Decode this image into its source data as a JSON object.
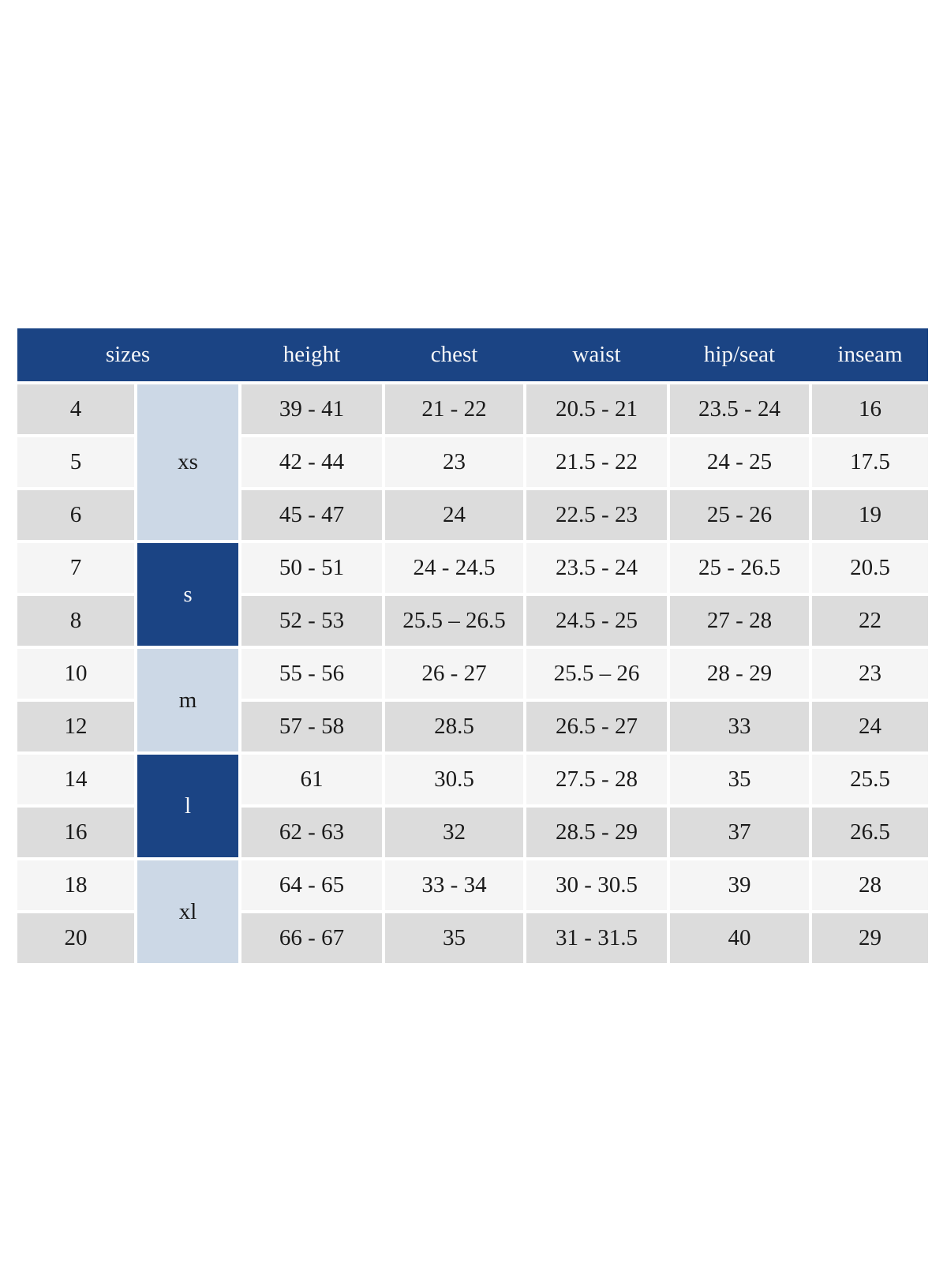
{
  "table": {
    "columns": [
      {
        "key": "sizes",
        "label": "sizes"
      },
      {
        "key": "height",
        "label": "height"
      },
      {
        "key": "chest",
        "label": "chest"
      },
      {
        "key": "waist",
        "label": "waist"
      },
      {
        "key": "hip_seat",
        "label": "hip/seat"
      },
      {
        "key": "inseam",
        "label": "inseam"
      }
    ],
    "size_groups": [
      {
        "label": "xs",
        "rows": [
          0,
          1,
          2
        ],
        "style": "light"
      },
      {
        "label": "s",
        "rows": [
          3,
          4
        ],
        "style": "dark"
      },
      {
        "label": "m",
        "rows": [
          5,
          6
        ],
        "style": "light"
      },
      {
        "label": "l",
        "rows": [
          7,
          8
        ],
        "style": "dark"
      },
      {
        "label": "xl",
        "rows": [
          9,
          10
        ],
        "style": "light"
      }
    ],
    "rows": [
      {
        "size": "4",
        "height": "39 - 41",
        "chest": "21 - 22",
        "waist": "20.5 - 21",
        "hip_seat": "23.5 - 24",
        "inseam": "16"
      },
      {
        "size": "5",
        "height": "42 - 44",
        "chest": "23",
        "waist": "21.5 - 22",
        "hip_seat": "24 - 25",
        "inseam": "17.5"
      },
      {
        "size": "6",
        "height": "45 - 47",
        "chest": "24",
        "waist": "22.5 - 23",
        "hip_seat": "25 - 26",
        "inseam": "19"
      },
      {
        "size": "7",
        "height": "50 - 51",
        "chest": "24 - 24.5",
        "waist": "23.5 - 24",
        "hip_seat": "25 - 26.5",
        "inseam": "20.5"
      },
      {
        "size": "8",
        "height": "52 - 53",
        "chest": "25.5 – 26.5",
        "waist": "24.5 - 25",
        "hip_seat": "27 - 28",
        "inseam": "22"
      },
      {
        "size": "10",
        "height": "55 - 56",
        "chest": "26 - 27",
        "waist": "25.5 – 26",
        "hip_seat": "28 - 29",
        "inseam": "23"
      },
      {
        "size": "12",
        "height": "57 - 58",
        "chest": "28.5",
        "waist": "26.5 - 27",
        "hip_seat": "33",
        "inseam": "24"
      },
      {
        "size": "14",
        "height": "61",
        "chest": "30.5",
        "waist": "27.5 - 28",
        "hip_seat": "35",
        "inseam": "25.5"
      },
      {
        "size": "16",
        "height": "62 - 63",
        "chest": "32",
        "waist": "28.5 - 29",
        "hip_seat": "37",
        "inseam": "26.5"
      },
      {
        "size": "18",
        "height": "64 - 65",
        "chest": "33 - 34",
        "waist": "30 - 30.5",
        "hip_seat": "39",
        "inseam": "28"
      },
      {
        "size": "20",
        "height": "66 - 67",
        "chest": "35",
        "waist": "31 - 31.5",
        "hip_seat": "40",
        "inseam": "29"
      }
    ],
    "colors": {
      "header_bg": "#1b4484",
      "header_text": "#f6f7f9",
      "group_light_bg": "#ccd8e6",
      "group_dark_bg": "#1b4484",
      "row_even_bg": "#dcdcdc",
      "row_odd_bg": "#f5f5f5",
      "text": "#1a1a1a",
      "page_bg": "#ffffff"
    }
  }
}
